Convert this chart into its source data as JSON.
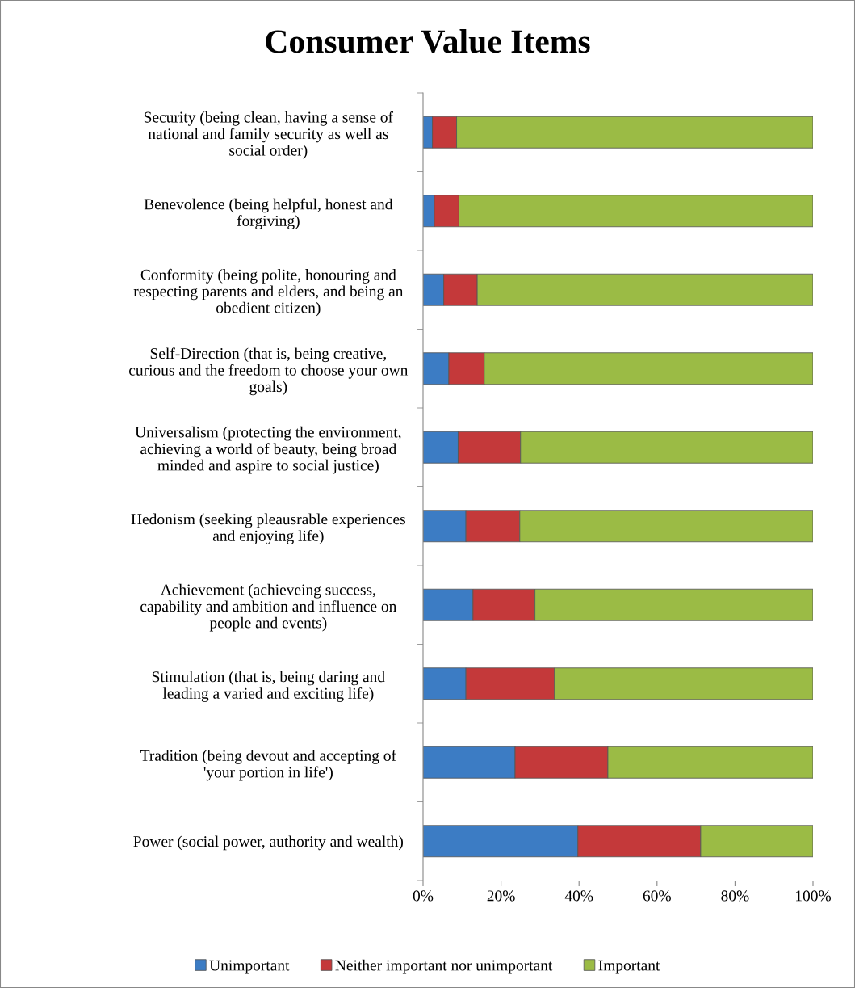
{
  "chart_data": {
    "type": "bar",
    "orientation": "horizontal",
    "stacked": true,
    "title": "Consumer Value Items",
    "categories": [
      "Security (being clean, having a sense of\nnational and family security as well as\nsocial order)",
      "Benevolence (being helpful, honest and\nforgiving)",
      "Conformity (being polite, honouring and\nrespecting parents and elders, and being an\nobedient citizen)",
      "Self-Direction (that is, being creative,\ncurious and the freedom to choose your own\ngoals)",
      "Universalism (protecting the environment,\nachieving a world of beauty, being broad\nminded and aspire to social justice)",
      "Hedonism (seeking pleausrable experiences\nand enjoying life)",
      "Achievement (achieveing success,\ncapability and ambition and influence on\npeople and events)",
      "Stimulation (that is, being daring and\nleading a varied and exciting life)",
      "Tradition (being devout and accepting of\n'your portion in life')",
      "Power (social power, authority and wealth)"
    ],
    "series": [
      {
        "name": "Unimportant",
        "color": "#3c7cc4",
        "values": [
          2.4,
          2.9,
          5.3,
          6.6,
          9.0,
          11.0,
          12.8,
          11.0,
          23.6,
          39.7
        ]
      },
      {
        "name": "Neither important nor unimportant",
        "color": "#c4393a",
        "values": [
          6.2,
          6.3,
          8.6,
          9.1,
          16.0,
          13.8,
          15.9,
          22.7,
          23.8,
          31.5
        ]
      },
      {
        "name": "Important",
        "color": "#9bbb45",
        "values": [
          91.4,
          90.8,
          86.1,
          84.3,
          75.0,
          75.2,
          71.3,
          66.3,
          52.6,
          28.8
        ]
      }
    ],
    "xlim": [
      0,
      100
    ],
    "xticks": [
      {
        "value": 0,
        "label": "0%"
      },
      {
        "value": 20,
        "label": "20%"
      },
      {
        "value": 40,
        "label": "40%"
      },
      {
        "value": 60,
        "label": "60%"
      },
      {
        "value": 80,
        "label": "80%"
      },
      {
        "value": 100,
        "label": "100%"
      }
    ],
    "legend": "bottom",
    "grid": false
  }
}
